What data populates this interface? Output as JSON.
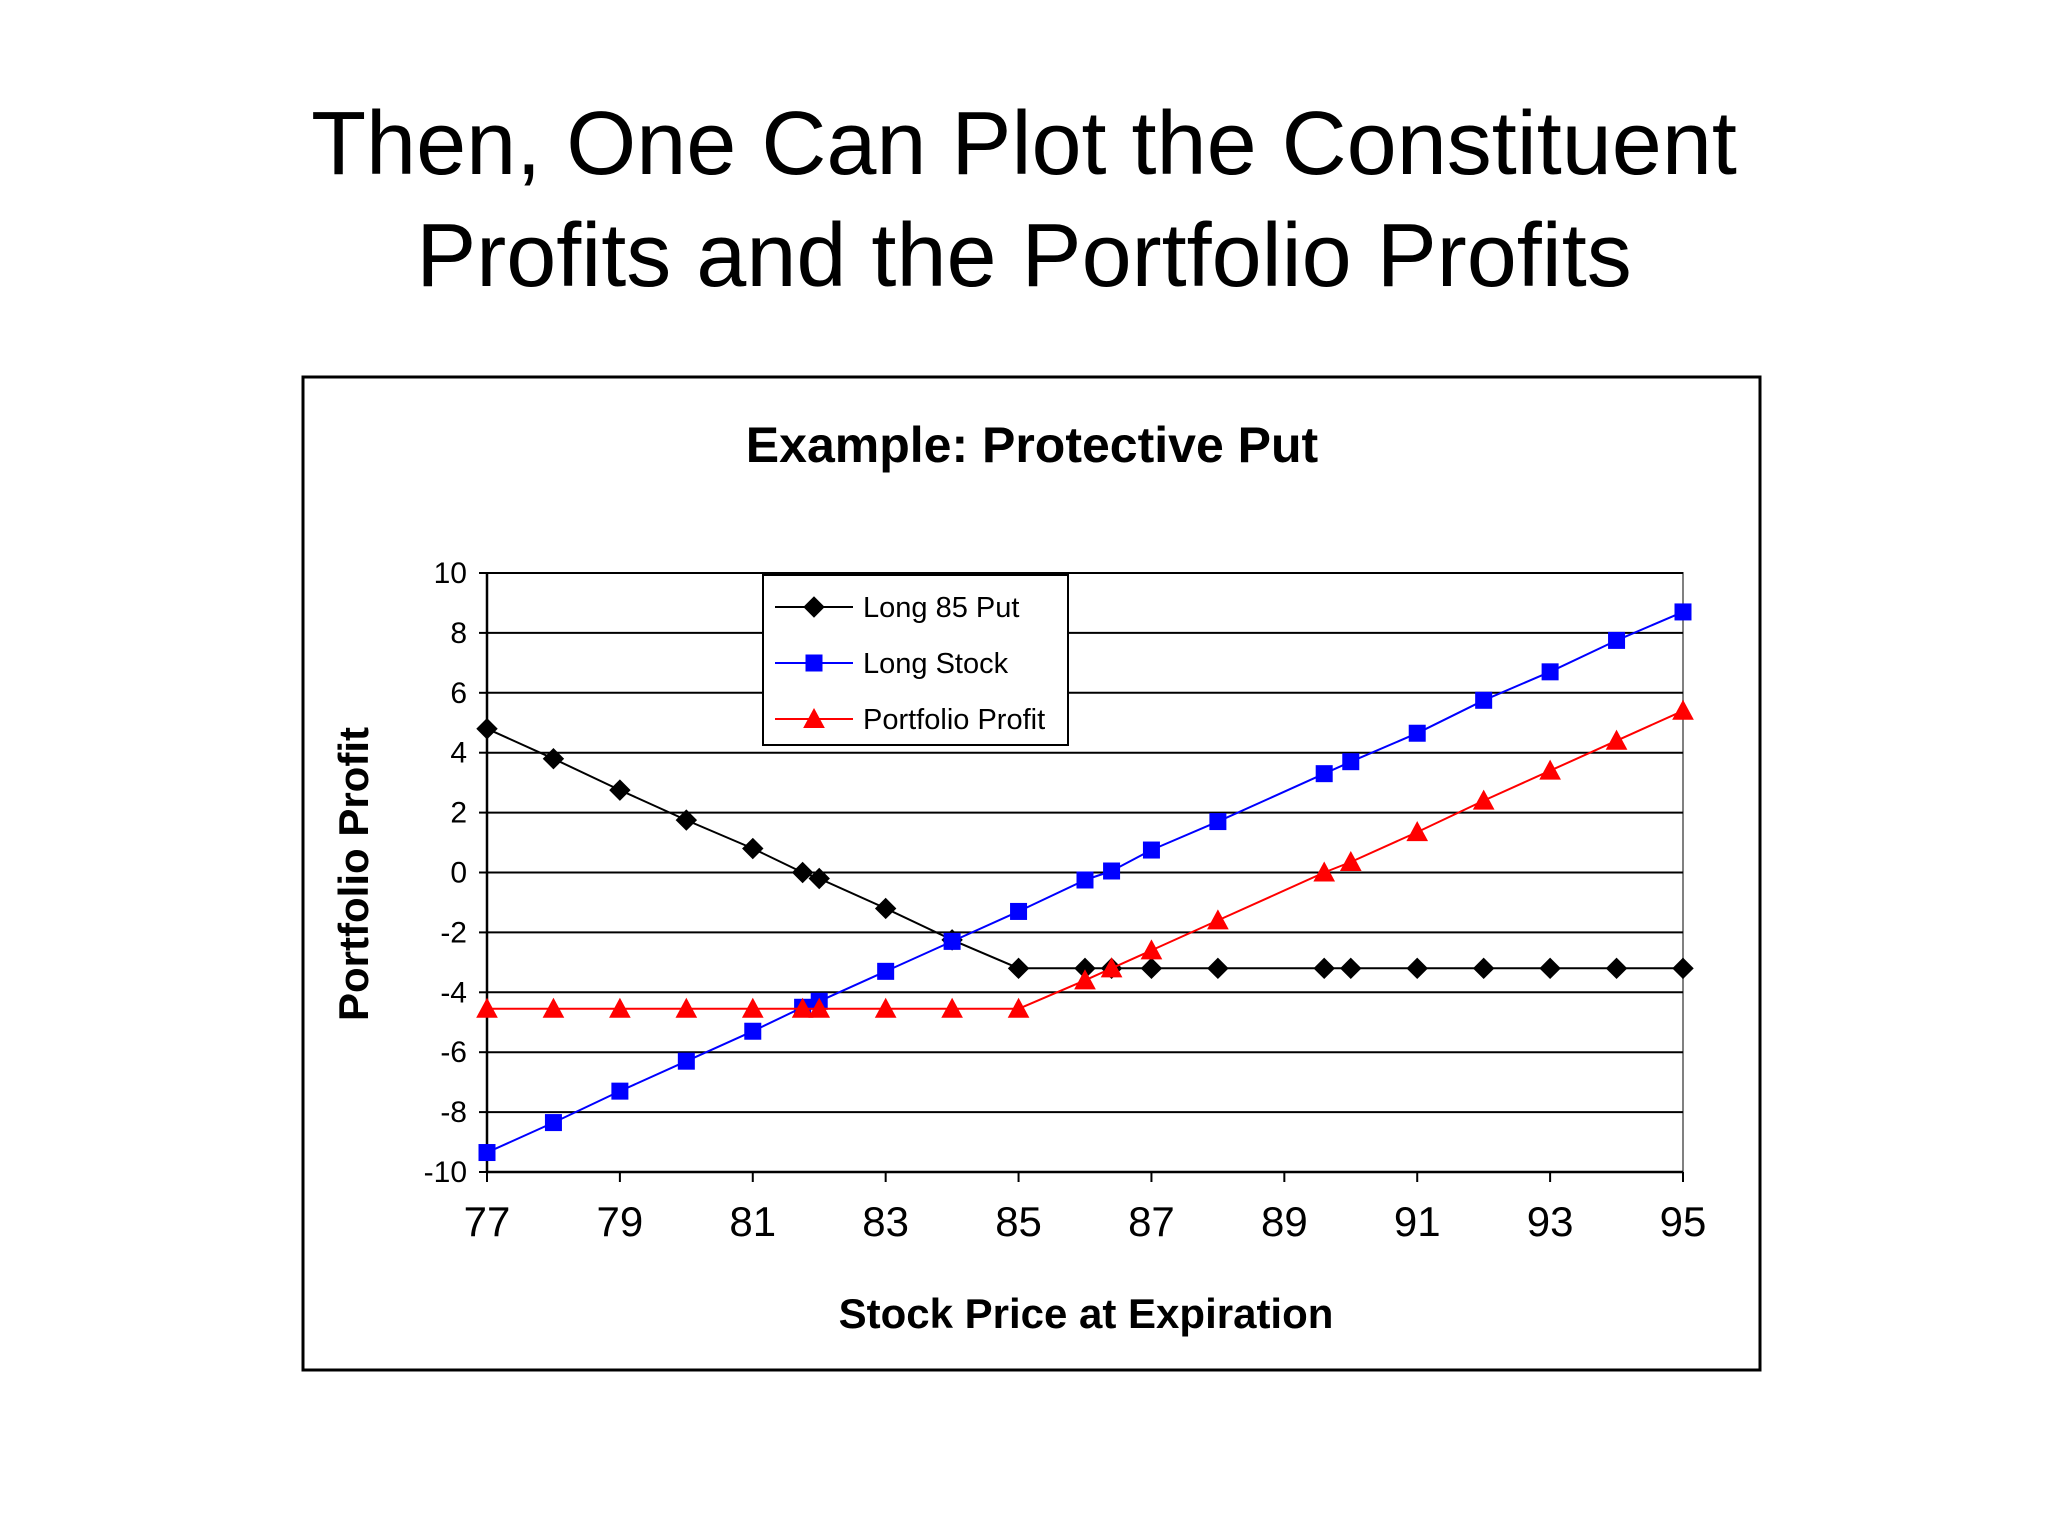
{
  "slide": {
    "title_line1": "Then, One Can Plot the Constituent",
    "title_line2": "Profits and the Portfolio Profits"
  },
  "chart_data": {
    "type": "line",
    "title": "Example: Protective Put",
    "xlabel": "Stock Price at Expiration",
    "ylabel": "Portfolio Profit",
    "xlim": [
      77,
      95
    ],
    "ylim": [
      -10,
      10
    ],
    "xticks": [
      77,
      79,
      81,
      83,
      85,
      87,
      89,
      91,
      93,
      95
    ],
    "yticks": [
      10,
      8,
      6,
      4,
      2,
      0,
      -2,
      -4,
      -6,
      -8,
      -10
    ],
    "grid": "horizontal",
    "legend_position": "top-left-inside",
    "series": [
      {
        "name": "Long 85 Put",
        "color": "#000000",
        "marker": "diamond",
        "points": [
          [
            77,
            4.8
          ],
          [
            78,
            3.8
          ],
          [
            79,
            2.75
          ],
          [
            80,
            1.75
          ],
          [
            81,
            0.8
          ],
          [
            81.75,
            0
          ],
          [
            82,
            -0.2
          ],
          [
            83,
            -1.2
          ],
          [
            84,
            -2.25
          ],
          [
            85,
            -3.2
          ],
          [
            86,
            -3.2
          ],
          [
            86.4,
            -3.2
          ],
          [
            87,
            -3.2
          ],
          [
            88,
            -3.2
          ],
          [
            89.6,
            -3.2
          ],
          [
            90,
            -3.2
          ],
          [
            91,
            -3.2
          ],
          [
            92,
            -3.2
          ],
          [
            93,
            -3.2
          ],
          [
            94,
            -3.2
          ],
          [
            95,
            -3.2
          ]
        ]
      },
      {
        "name": "Long Stock",
        "color": "#0000FF",
        "marker": "square",
        "points": [
          [
            77,
            -9.35
          ],
          [
            78,
            -8.35
          ],
          [
            79,
            -7.3
          ],
          [
            80,
            -6.3
          ],
          [
            81,
            -5.3
          ],
          [
            81.75,
            -4.5
          ],
          [
            82,
            -4.3
          ],
          [
            83,
            -3.3
          ],
          [
            84,
            -2.3
          ],
          [
            85,
            -1.3
          ],
          [
            86,
            -0.25
          ],
          [
            86.4,
            0.05
          ],
          [
            87,
            0.75
          ],
          [
            88,
            1.7
          ],
          [
            89.6,
            3.3
          ],
          [
            90,
            3.7
          ],
          [
            91,
            4.65
          ],
          [
            92,
            5.75
          ],
          [
            93,
            6.7
          ],
          [
            94,
            7.75
          ],
          [
            95,
            8.7
          ]
        ]
      },
      {
        "name": "Portfolio Profit",
        "color": "#FF0000",
        "marker": "triangle",
        "points": [
          [
            77,
            -4.55
          ],
          [
            78,
            -4.55
          ],
          [
            79,
            -4.55
          ],
          [
            80,
            -4.55
          ],
          [
            81,
            -4.55
          ],
          [
            81.75,
            -4.55
          ],
          [
            82,
            -4.55
          ],
          [
            83,
            -4.55
          ],
          [
            84,
            -4.55
          ],
          [
            85,
            -4.55
          ],
          [
            86,
            -3.6
          ],
          [
            86.4,
            -3.2
          ],
          [
            87,
            -2.6
          ],
          [
            88,
            -1.6
          ],
          [
            89.6,
            0
          ],
          [
            90,
            0.35
          ],
          [
            91,
            1.35
          ],
          [
            92,
            2.4
          ],
          [
            93,
            3.4
          ],
          [
            94,
            4.4
          ],
          [
            95,
            5.4
          ]
        ]
      }
    ]
  }
}
